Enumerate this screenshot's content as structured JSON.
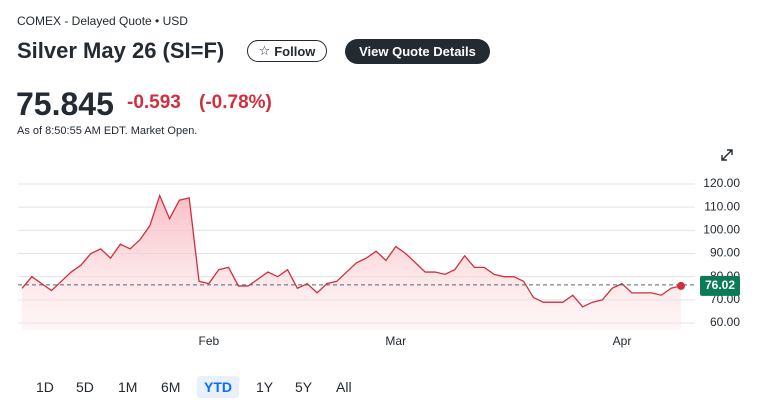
{
  "header": {
    "exchange": "COMEX - Delayed Quote • USD",
    "title": "Silver May 26 (SI=F)",
    "follow": "Follow",
    "view_details": "View Quote Details",
    "price": "75.845",
    "change": "-0.593",
    "change_percent": "(-0.78%)",
    "as_of": "As of 8:50:55 AM EDT. Market Open."
  },
  "chart_data": {
    "type": "area",
    "color": "#d12f3d",
    "categories": [
      null,
      null,
      null,
      null,
      null,
      null,
      null,
      null,
      null,
      null,
      null,
      null,
      null,
      null,
      null,
      null,
      null,
      null,
      null,
      "Feb",
      null,
      null,
      null,
      null,
      null,
      null,
      null,
      null,
      null,
      null,
      null,
      null,
      null,
      null,
      null,
      null,
      null,
      null,
      "Mar",
      null,
      null,
      null,
      null,
      null,
      null,
      null,
      null,
      null,
      null,
      null,
      null,
      null,
      null,
      null,
      null,
      null,
      null,
      null,
      null,
      null,
      null,
      "Apr",
      null,
      null,
      null,
      null,
      null,
      null
    ],
    "values": [
      75,
      80,
      77,
      74,
      78,
      82,
      85,
      90,
      92,
      88,
      94,
      92,
      96,
      102,
      115,
      105,
      113,
      114,
      78,
      77,
      83,
      84,
      76,
      76,
      79,
      82,
      80,
      83,
      75,
      77,
      73,
      77,
      78,
      82,
      86,
      88,
      91,
      87,
      93,
      90,
      86,
      82,
      82,
      81,
      83,
      89,
      84,
      84,
      81,
      80,
      80,
      78,
      71,
      69,
      69,
      69,
      72,
      67,
      69,
      70,
      75,
      77,
      73,
      73,
      73,
      72,
      75,
      76.02
    ],
    "value_labels": [
      null,
      null,
      null,
      null,
      null,
      null,
      null,
      null,
      null,
      null,
      null,
      null,
      null,
      null,
      null,
      null,
      null,
      null,
      null,
      null,
      null,
      null,
      null,
      null,
      null,
      null,
      null,
      null,
      null,
      null,
      null,
      null,
      null,
      null,
      null,
      null,
      null,
      null,
      null,
      null,
      null,
      null,
      null,
      null,
      null,
      null,
      null,
      null,
      null,
      null,
      null,
      null,
      null,
      null,
      null,
      null,
      null,
      null,
      null,
      null,
      null,
      null,
      null,
      null,
      null,
      null,
      null,
      "76.02"
    ],
    "previous_close": 76.44,
    "ylim": [
      57,
      123
    ],
    "yticks": [
      {
        "value": 60,
        "label": "60.00"
      },
      {
        "value": 70,
        "label": "70.00"
      },
      {
        "value": 80,
        "label": "80.00"
      },
      {
        "value": 90,
        "label": "90.00"
      },
      {
        "value": 100,
        "label": "100.00"
      },
      {
        "value": 110,
        "label": "110.00"
      },
      {
        "value": 120,
        "label": "120.00"
      }
    ],
    "grid": true
  },
  "ranges": [
    "1D",
    "5D",
    "1M",
    "6M",
    "YTD",
    "1Y",
    "5Y",
    "All"
  ],
  "selected_range": 4
}
